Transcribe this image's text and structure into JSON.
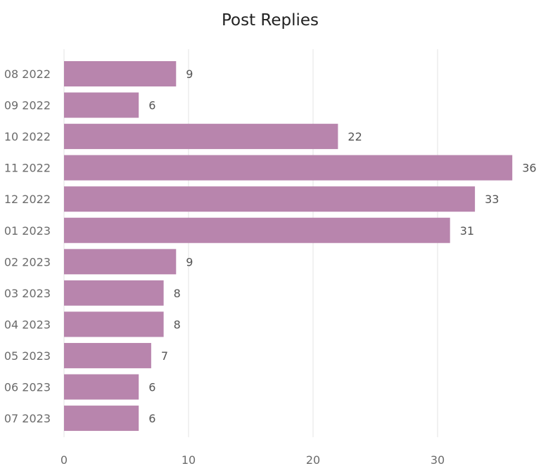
{
  "chart_data": {
    "type": "bar",
    "orientation": "horizontal",
    "title": "Post Replies",
    "categories": [
      "08 2022",
      "09 2022",
      "10 2022",
      "11 2022",
      "12 2022",
      "01 2023",
      "02 2023",
      "03 2023",
      "04 2023",
      "05 2023",
      "06 2023",
      "07 2023"
    ],
    "values": [
      9,
      6,
      22,
      36,
      33,
      31,
      9,
      8,
      8,
      7,
      6,
      6
    ],
    "data_labels": [
      "9",
      "6",
      "22",
      "36",
      "33",
      "31",
      "9",
      "8",
      "8",
      "7",
      "6",
      "6"
    ],
    "x_ticks": [
      0,
      10,
      20,
      30
    ],
    "x_tick_labels": [
      "0",
      "10",
      "20",
      "30"
    ],
    "xlim": [
      0,
      36
    ],
    "xlabel": "",
    "ylabel": "",
    "grid": true,
    "legend": "none",
    "bar_color": "#b885ad",
    "grid_color": "#e3e3e3"
  }
}
